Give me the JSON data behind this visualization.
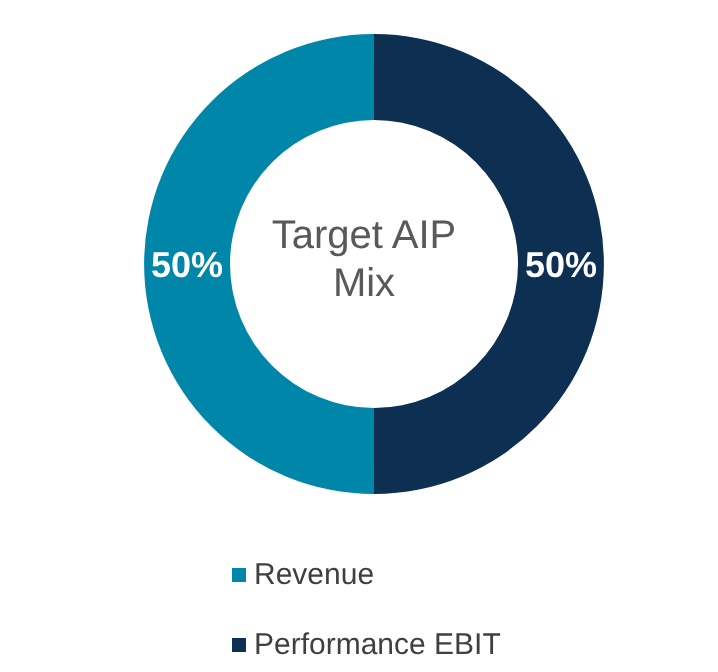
{
  "chart_data": {
    "type": "donut",
    "title": "Target AIP Mix",
    "categories": [
      "Revenue",
      "Performance EBIT"
    ],
    "values": [
      50,
      50
    ],
    "colors": [
      "#0086a8",
      "#0c2f52"
    ],
    "value_labels": [
      "50%",
      "50%"
    ],
    "legend": "bottom"
  }
}
